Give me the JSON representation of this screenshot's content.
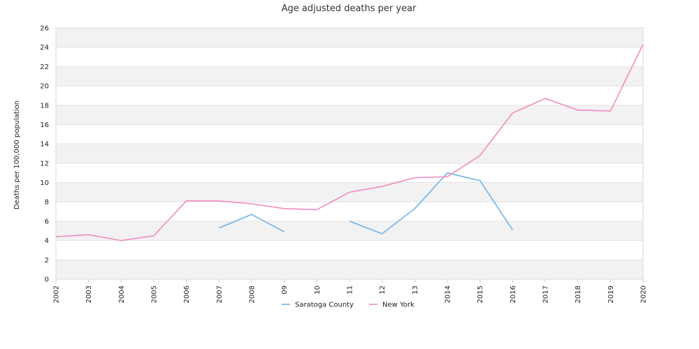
{
  "chart_data": {
    "type": "line",
    "title": "Age adjusted deaths per year",
    "xlabel": "",
    "ylabel": "Deaths per 100,000 population",
    "x": [
      "2002",
      "2003",
      "2004",
      "2005",
      "2006",
      "2007",
      "2008",
      "09",
      "10",
      "11",
      "12",
      "13",
      "2014",
      "2015",
      "2016",
      "2017",
      "2018",
      "2019",
      "2020"
    ],
    "ylim": [
      0,
      26
    ],
    "yticks": [
      0,
      2,
      4,
      6,
      8,
      10,
      12,
      14,
      16,
      18,
      20,
      22,
      24,
      26
    ],
    "grid": "alternating horizontal bands",
    "legend_position": "bottom-center",
    "series": [
      {
        "name": "Saratoga County",
        "color": "#6fb3e8",
        "values": [
          null,
          null,
          null,
          null,
          null,
          5.3,
          6.7,
          4.9,
          null,
          6.0,
          4.7,
          7.3,
          11.0,
          10.2,
          5.1,
          null,
          null,
          null,
          null
        ]
      },
      {
        "name": "New York",
        "color": "#f08cbf",
        "values": [
          4.4,
          4.6,
          4.0,
          4.5,
          8.1,
          8.1,
          7.8,
          7.3,
          7.2,
          9.0,
          9.6,
          10.5,
          10.6,
          12.8,
          17.2,
          18.7,
          17.5,
          17.4,
          24.3
        ]
      }
    ]
  }
}
